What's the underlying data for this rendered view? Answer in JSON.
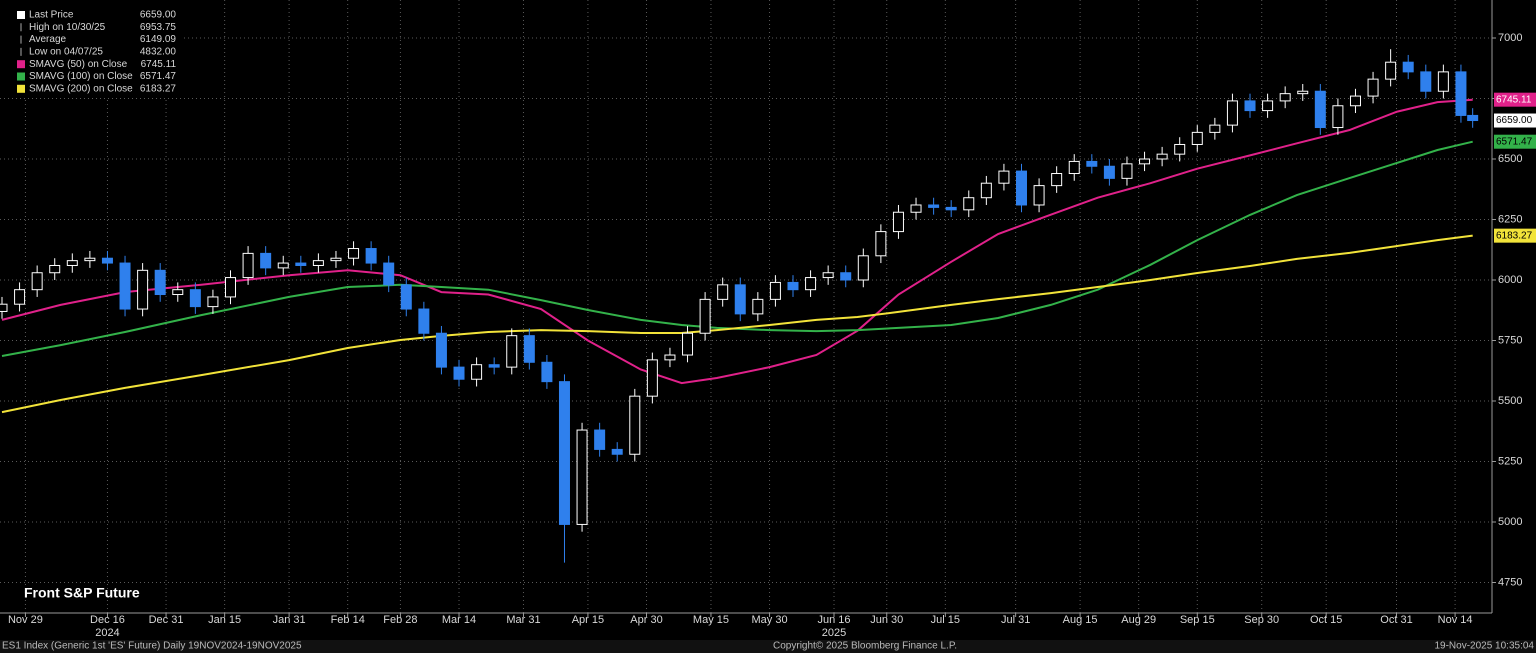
{
  "chart_data": {
    "type": "candlestick",
    "title": "Front S&P Future",
    "legend": [
      {
        "name": "Last Price",
        "reading": "6659.00",
        "color": "#ffffff"
      },
      {
        "name": "High on 10/30/25",
        "reading": "6953.75"
      },
      {
        "name": "Average",
        "reading": "6149.09"
      },
      {
        "name": "Low on 04/07/25",
        "reading": "4832.00"
      },
      {
        "name": "SMAVG (50)  on Close",
        "reading": "6745.11",
        "color": "#e0218a"
      },
      {
        "name": "SMAVG (100)  on Close",
        "reading": "6571.47",
        "color": "#33b24a"
      },
      {
        "name": "SMAVG (200)  on Close",
        "reading": "6183.27",
        "color": "#f2e33a"
      }
    ],
    "last_tag": "6659.00",
    "up_color": "#ffffff",
    "down_color": "#2f80ed",
    "candles": {
      "x": [
        0,
        3,
        6,
        9,
        12,
        15,
        18,
        21,
        24,
        27,
        30,
        33,
        36,
        39,
        42,
        45,
        48,
        51,
        54,
        57,
        60,
        63,
        66,
        69,
        72,
        75,
        78,
        81,
        84,
        87,
        90,
        93,
        96,
        99,
        102,
        105,
        108,
        111,
        114,
        117,
        120,
        123,
        126,
        129,
        132,
        135,
        138,
        141,
        144,
        147,
        150,
        153,
        156,
        159,
        162,
        165,
        168,
        171,
        174,
        177,
        180,
        183,
        186,
        189,
        192,
        195,
        198,
        201,
        204,
        207,
        210,
        213,
        216,
        219,
        222,
        225,
        228,
        231,
        234,
        237,
        240,
        243,
        246,
        249,
        251
      ],
      "open": [
        5870,
        5900,
        5960,
        6030,
        6060,
        6080,
        6090,
        6070,
        5880,
        6040,
        5940,
        5960,
        5890,
        5930,
        6010,
        6110,
        6050,
        6070,
        6060,
        6080,
        6090,
        6130,
        6070,
        5980,
        5880,
        5780,
        5640,
        5590,
        5650,
        5640,
        5770,
        5660,
        5580,
        4990,
        5380,
        5300,
        5280,
        5520,
        5670,
        5690,
        5780,
        5920,
        5980,
        5860,
        5920,
        5990,
        5960,
        6010,
        6030,
        6000,
        6100,
        6200,
        6280,
        6310,
        6300,
        6290,
        6340,
        6400,
        6450,
        6310,
        6390,
        6440,
        6490,
        6470,
        6420,
        6480,
        6500,
        6520,
        6560,
        6610,
        6640,
        6740,
        6700,
        6740,
        6770,
        6780,
        6630,
        6720,
        6760,
        6830,
        6900,
        6860,
        6780,
        6860,
        6680
      ],
      "high": [
        5930,
        5990,
        6060,
        6090,
        6110,
        6120,
        6120,
        6100,
        6070,
        6070,
        5990,
        5990,
        5960,
        6040,
        6140,
        6140,
        6100,
        6100,
        6110,
        6120,
        6160,
        6160,
        6100,
        6010,
        5910,
        5810,
        5670,
        5680,
        5680,
        5800,
        5800,
        5690,
        5610,
        5410,
        5410,
        5330,
        5550,
        5700,
        5720,
        5810,
        5950,
        6010,
        6010,
        5950,
        6020,
        6020,
        6040,
        6060,
        6060,
        6130,
        6230,
        6310,
        6340,
        6340,
        6330,
        6370,
        6430,
        6480,
        6480,
        6420,
        6470,
        6520,
        6520,
        6500,
        6510,
        6530,
        6550,
        6590,
        6640,
        6670,
        6770,
        6770,
        6770,
        6800,
        6810,
        6810,
        6750,
        6790,
        6860,
        6953.75,
        6930,
        6890,
        6890,
        6890,
        6710
      ],
      "low": [
        5840,
        5870,
        5930,
        6000,
        6030,
        6050,
        6040,
        5850,
        5850,
        5910,
        5910,
        5860,
        5860,
        5900,
        5980,
        6020,
        6020,
        6030,
        6030,
        6050,
        6060,
        6040,
        5950,
        5850,
        5750,
        5610,
        5560,
        5560,
        5610,
        5610,
        5630,
        5550,
        4832,
        4960,
        5270,
        5250,
        5250,
        5490,
        5640,
        5660,
        5750,
        5890,
        5830,
        5830,
        5890,
        5930,
        5930,
        5980,
        5970,
        5970,
        6070,
        6170,
        6250,
        6270,
        6260,
        6260,
        6310,
        6370,
        6280,
        6280,
        6360,
        6410,
        6440,
        6390,
        6390,
        6450,
        6470,
        6490,
        6530,
        6580,
        6610,
        6670,
        6670,
        6710,
        6740,
        6600,
        6600,
        6690,
        6730,
        6800,
        6830,
        6750,
        6750,
        6650,
        6629
      ],
      "close": [
        5900,
        5960,
        6030,
        6060,
        6080,
        6090,
        6070,
        5880,
        6040,
        5940,
        5960,
        5890,
        5930,
        6010,
        6110,
        6050,
        6070,
        6060,
        6080,
        6090,
        6130,
        6070,
        5980,
        5880,
        5780,
        5640,
        5590,
        5650,
        5640,
        5770,
        5660,
        5580,
        4990,
        5380,
        5300,
        5280,
        5520,
        5670,
        5690,
        5780,
        5920,
        5980,
        5860,
        5920,
        5990,
        5960,
        6010,
        6030,
        6000,
        6100,
        6200,
        6280,
        6310,
        6300,
        6290,
        6340,
        6400,
        6450,
        6310,
        6390,
        6440,
        6490,
        6470,
        6420,
        6480,
        6500,
        6520,
        6560,
        6610,
        6640,
        6740,
        6700,
        6740,
        6770,
        6780,
        6630,
        6720,
        6760,
        6830,
        6900,
        6860,
        6780,
        6860,
        6680,
        6659
      ]
    },
    "series": [
      {
        "name": "SMAVG (50)  on Close",
        "color": "#e0218a",
        "tag": "6745.11",
        "x": [
          0,
          10,
          21,
          34,
          49,
          59,
          68,
          75,
          83,
          92,
          100,
          109,
          116,
          122,
          131,
          139,
          146,
          153,
          162,
          170,
          179,
          187,
          196,
          204,
          213,
          221,
          230,
          238,
          245,
          251
        ],
        "values": [
          5835,
          5897,
          5950,
          5980,
          6020,
          6040,
          6020,
          5950,
          5940,
          5880,
          5750,
          5630,
          5574,
          5595,
          5640,
          5690,
          5790,
          5940,
          6075,
          6190,
          6270,
          6340,
          6400,
          6460,
          6515,
          6565,
          6620,
          6695,
          6735,
          6745.11
        ]
      },
      {
        "name": "SMAVG (100)  on Close",
        "color": "#33b24a",
        "tag": "6571.47",
        "x": [
          0,
          10,
          21,
          34,
          49,
          59,
          68,
          75,
          83,
          92,
          100,
          109,
          116,
          122,
          131,
          139,
          146,
          153,
          162,
          170,
          179,
          187,
          196,
          204,
          213,
          221,
          230,
          238,
          245,
          251
        ],
        "values": [
          5686,
          5731,
          5785,
          5855,
          5930,
          5971,
          5980,
          5971,
          5960,
          5917,
          5876,
          5835,
          5814,
          5802,
          5793,
          5789,
          5793,
          5802,
          5814,
          5843,
          5897,
          5960,
          6063,
          6165,
          6269,
          6351,
          6421,
          6483,
          6537,
          6571.47
        ]
      },
      {
        "name": "SMAVG (200)  on Close",
        "color": "#f2e33a",
        "tag": "6183.27",
        "x": [
          0,
          10,
          21,
          34,
          49,
          59,
          68,
          75,
          83,
          92,
          100,
          109,
          116,
          122,
          131,
          139,
          146,
          153,
          162,
          170,
          179,
          187,
          196,
          204,
          213,
          221,
          230,
          238,
          245,
          251
        ],
        "values": [
          5454,
          5504,
          5554,
          5607,
          5669,
          5719,
          5752,
          5769,
          5785,
          5793,
          5789,
          5781,
          5781,
          5793,
          5814,
          5835,
          5847,
          5868,
          5897,
          5921,
          5946,
          5971,
          6000,
          6029,
          6058,
          6087,
          6112,
          6140,
          6165,
          6183.27
        ]
      }
    ],
    "xlim": [
      -0.34,
      254.3
    ],
    "xticks": [
      {
        "value": 4,
        "label": "Nov 29"
      },
      {
        "value": 18,
        "label": "Dec 16"
      },
      {
        "value": 28,
        "label": "Dec 31"
      },
      {
        "value": 38,
        "label": "Jan 15"
      },
      {
        "value": 49,
        "label": "Jan 31"
      },
      {
        "value": 59,
        "label": "Feb 14"
      },
      {
        "value": 68,
        "label": "Feb 28"
      },
      {
        "value": 78,
        "label": "Mar 14"
      },
      {
        "value": 89,
        "label": "Mar 31"
      },
      {
        "value": 100,
        "label": "Apr 15"
      },
      {
        "value": 110,
        "label": "Apr 30"
      },
      {
        "value": 121,
        "label": "May 15"
      },
      {
        "value": 131,
        "label": "May 30"
      },
      {
        "value": 142,
        "label": "Jun 16"
      },
      {
        "value": 151,
        "label": "Jun 30"
      },
      {
        "value": 161,
        "label": "Jul 15"
      },
      {
        "value": 173,
        "label": "Jul 31"
      },
      {
        "value": 184,
        "label": "Aug 15"
      },
      {
        "value": 194,
        "label": "Aug 29"
      },
      {
        "value": 204,
        "label": "Sep 15"
      },
      {
        "value": 215,
        "label": "Sep 30"
      },
      {
        "value": 226,
        "label": "Oct 15"
      },
      {
        "value": 238,
        "label": "Oct 31"
      },
      {
        "value": 248,
        "label": "Nov 14"
      }
    ],
    "years": [
      {
        "value": 18,
        "label": "2024"
      },
      {
        "value": 142,
        "label": "2025"
      }
    ],
    "ylim": [
      4624,
      7157
    ],
    "yticks": [
      4750,
      5000,
      5250,
      5500,
      5750,
      6000,
      6250,
      6500,
      6750,
      7000
    ],
    "grid": true,
    "footer": {
      "left": "ES1 Index (Generic 1st 'ES' Future) Daily 19NOV2024-19NOV2025",
      "center": "Copyright© 2025 Bloomberg Finance L.P.",
      "right": "19-Nov-2025 10:35:04"
    }
  }
}
